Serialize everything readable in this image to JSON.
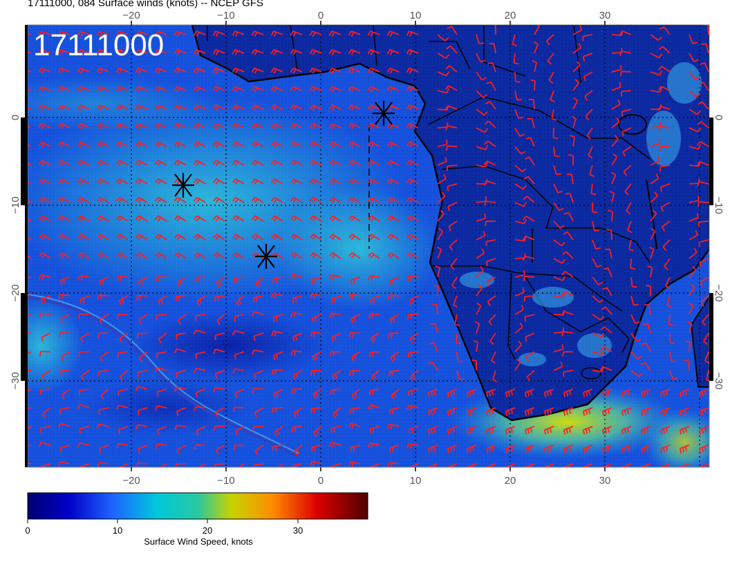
{
  "header": {
    "title": "17111000, 084 Surface winds (knots) -- NCEP GFS"
  },
  "map": {
    "date_stamp": "17111000",
    "lon_ticks": [
      "−20",
      "−10",
      "0",
      "10",
      "20",
      "30"
    ],
    "lat_ticks": [
      "0",
      "−10",
      "−20",
      "−30"
    ],
    "markers": [
      "sounding-marker-1",
      "sounding-marker-2",
      "sounding-marker-3"
    ]
  },
  "colorbar": {
    "ticks": [
      "0",
      "10",
      "20",
      "30"
    ],
    "label": "Surface Wind Speed, knots",
    "colors": [
      "#000070",
      "#0000c8",
      "#1e64ff",
      "#00c8dc",
      "#28c8a0",
      "#c8d200",
      "#ff8c00",
      "#dc0000",
      "#8c0000",
      "#500000"
    ]
  },
  "colors": {
    "barb": "#ff1e1e",
    "ocean": "#1450dc",
    "land": "#0a28a0",
    "coast": "#000000"
  }
}
